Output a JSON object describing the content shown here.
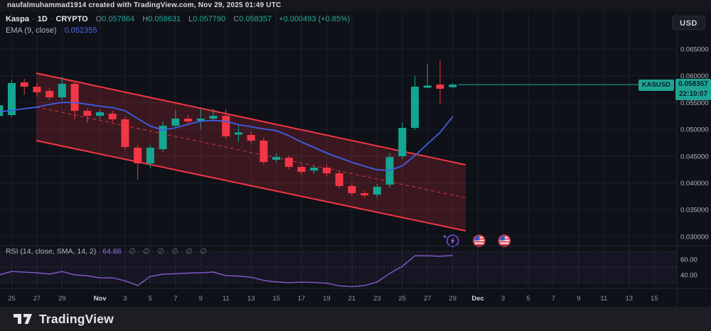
{
  "attribution": "naufalmuhammad1914 created with TradingView.com, Nov 29, 2025 01:49 UTC",
  "legend": {
    "symbol": "Kaspa",
    "separator": "·",
    "interval": "1D",
    "exchange": "CRYPTO",
    "o_label": "O",
    "o": "0.057864",
    "h_label": "H",
    "h": "0.058631",
    "l_label": "L",
    "l": "0.057790",
    "c_label": "C",
    "c": "0.058357",
    "change": "+0.000493 (+0.85%)",
    "ema_label": "EMA (9, close)",
    "ema_value": "0.052355"
  },
  "currency_button": "USD",
  "price_label": {
    "symbol": "KASUSD",
    "price": "0.058357",
    "countdown": "22:10:07"
  },
  "rsi_legend": {
    "label": "RSI (14, close, SMA, 14, 2)",
    "value": "64.88",
    "hidden_values": "∅ ∅ ∅ ∅ ∅ ∅"
  },
  "logo": {
    "text": "TradingView"
  },
  "colors": {
    "up": "#13a692",
    "down": "#f23645",
    "ema": "#3e5fe6",
    "rsi": "#7e57c2",
    "channel": "#f23645",
    "label_bg": "#21a392",
    "ema_value_blue": "#4e6ef2"
  },
  "chart_data": [
    {
      "type": "candlestick",
      "title": "Kaspa · 1D · CRYPTO",
      "first_index": -1,
      "y_axis": {
        "ticks": [
          0.065,
          0.06,
          0.055,
          0.05,
          0.045,
          0.04,
          0.035,
          0.03
        ],
        "range": [
          0.0287,
          0.0672
        ]
      },
      "x_axis": {
        "ticks": [
          {
            "i": 0,
            "label": "25"
          },
          {
            "i": 2,
            "label": "27"
          },
          {
            "i": 4,
            "label": "29"
          },
          {
            "i": 7,
            "label": "Nov",
            "major": true
          },
          {
            "i": 9,
            "label": "3"
          },
          {
            "i": 11,
            "label": "5"
          },
          {
            "i": 13,
            "label": "7"
          },
          {
            "i": 15,
            "label": "9"
          },
          {
            "i": 17,
            "label": "11"
          },
          {
            "i": 19,
            "label": "13"
          },
          {
            "i": 21,
            "label": "15"
          },
          {
            "i": 23,
            "label": "17"
          },
          {
            "i": 25,
            "label": "19"
          },
          {
            "i": 27,
            "label": "21"
          },
          {
            "i": 29,
            "label": "23"
          },
          {
            "i": 31,
            "label": "25"
          },
          {
            "i": 33,
            "label": "27"
          },
          {
            "i": 35,
            "label": "29"
          },
          {
            "i": 37,
            "label": "Dec",
            "major": true
          },
          {
            "i": 39,
            "label": "3"
          },
          {
            "i": 41,
            "label": "5"
          },
          {
            "i": 43,
            "label": "7"
          },
          {
            "i": 45,
            "label": "9"
          },
          {
            "i": 47,
            "label": "11"
          },
          {
            "i": 49,
            "label": "13"
          },
          {
            "i": 51,
            "label": "15"
          }
        ]
      },
      "candles": [
        {
          "d": "Oct 24",
          "o": 0.0525,
          "h": 0.0547,
          "l": 0.0522,
          "c": 0.0545
        },
        {
          "d": "Oct 25",
          "o": 0.05267,
          "h": 0.0593,
          "l": 0.05228,
          "c": 0.05864
        },
        {
          "d": "Oct 26",
          "o": 0.05877,
          "h": 0.05943,
          "l": 0.05651,
          "c": 0.05797
        },
        {
          "d": "Oct 27",
          "o": 0.05797,
          "h": 0.05864,
          "l": 0.05612,
          "c": 0.05691
        },
        {
          "d": "Oct 28",
          "o": 0.05718,
          "h": 0.05771,
          "l": 0.05545,
          "c": 0.05598
        },
        {
          "d": "Oct 29",
          "o": 0.05598,
          "h": 0.05983,
          "l": 0.05545,
          "c": 0.0585
        },
        {
          "d": "Oct 30",
          "o": 0.0585,
          "h": 0.05903,
          "l": 0.05187,
          "c": 0.05346
        },
        {
          "d": "Oct 31",
          "o": 0.05346,
          "h": 0.05399,
          "l": 0.05121,
          "c": 0.05253
        },
        {
          "d": "Nov 1",
          "o": 0.05253,
          "h": 0.05373,
          "l": 0.05187,
          "c": 0.0532
        },
        {
          "d": "Nov 2",
          "o": 0.05293,
          "h": 0.05346,
          "l": 0.05134,
          "c": 0.05187
        },
        {
          "d": "Nov 3",
          "o": 0.05187,
          "h": 0.0524,
          "l": 0.04617,
          "c": 0.0467
        },
        {
          "d": "Nov 4",
          "o": 0.04657,
          "h": 0.0471,
          "l": 0.0406,
          "c": 0.04365
        },
        {
          "d": "Nov 5",
          "o": 0.04365,
          "h": 0.0471,
          "l": 0.04272,
          "c": 0.04657
        },
        {
          "d": "Nov 6",
          "o": 0.0463,
          "h": 0.05147,
          "l": 0.04577,
          "c": 0.05068
        },
        {
          "d": "Nov 7",
          "o": 0.05068,
          "h": 0.0536,
          "l": 0.05015,
          "c": 0.052
        },
        {
          "d": "Nov 8",
          "o": 0.052,
          "h": 0.05267,
          "l": 0.05081,
          "c": 0.05147
        },
        {
          "d": "Nov 9",
          "o": 0.0516,
          "h": 0.05386,
          "l": 0.05002,
          "c": 0.052
        },
        {
          "d": "Nov 10",
          "o": 0.052,
          "h": 0.05386,
          "l": 0.05147,
          "c": 0.05253
        },
        {
          "d": "Nov 11",
          "o": 0.05253,
          "h": 0.05373,
          "l": 0.04829,
          "c": 0.04869
        },
        {
          "d": "Nov 12",
          "o": 0.04909,
          "h": 0.05068,
          "l": 0.04763,
          "c": 0.04935
        },
        {
          "d": "Nov 13",
          "o": 0.04896,
          "h": 0.04962,
          "l": 0.04736,
          "c": 0.04789
        },
        {
          "d": "Nov 14",
          "o": 0.04789,
          "h": 0.04842,
          "l": 0.04338,
          "c": 0.04391
        },
        {
          "d": "Nov 15",
          "o": 0.04432,
          "h": 0.04551,
          "l": 0.04378,
          "c": 0.04484
        },
        {
          "d": "Nov 16",
          "o": 0.04471,
          "h": 0.04511,
          "l": 0.04259,
          "c": 0.04299
        },
        {
          "d": "Nov 17",
          "o": 0.04299,
          "h": 0.04338,
          "l": 0.04153,
          "c": 0.04206
        },
        {
          "d": "Nov 18",
          "o": 0.04232,
          "h": 0.04325,
          "l": 0.04166,
          "c": 0.04285
        },
        {
          "d": "Nov 19",
          "o": 0.04285,
          "h": 0.04338,
          "l": 0.04126,
          "c": 0.04179
        },
        {
          "d": "Nov 20",
          "o": 0.04179,
          "h": 0.04232,
          "l": 0.03901,
          "c": 0.03941
        },
        {
          "d": "Nov 21",
          "o": 0.03941,
          "h": 0.03994,
          "l": 0.03755,
          "c": 0.03808
        },
        {
          "d": "Nov 22",
          "o": 0.03808,
          "h": 0.03861,
          "l": 0.03715,
          "c": 0.03768
        },
        {
          "d": "Nov 23",
          "o": 0.03781,
          "h": 0.0398,
          "l": 0.03728,
          "c": 0.03927
        },
        {
          "d": "Nov 24",
          "o": 0.03967,
          "h": 0.04564,
          "l": 0.03914,
          "c": 0.04484
        },
        {
          "d": "Nov 25",
          "o": 0.04498,
          "h": 0.05134,
          "l": 0.04445,
          "c": 0.05028
        },
        {
          "d": "Nov 26",
          "o": 0.05028,
          "h": 0.05996,
          "l": 0.04988,
          "c": 0.05797
        },
        {
          "d": "Nov 27",
          "o": 0.05784,
          "h": 0.06222,
          "l": 0.05771,
          "c": 0.05811
        },
        {
          "d": "Nov 28",
          "o": 0.05837,
          "h": 0.06288,
          "l": 0.05466,
          "c": 0.05758
        },
        {
          "d": "Nov 29",
          "o": 0.057864,
          "h": 0.058631,
          "l": 0.05779,
          "c": 0.058357
        }
      ],
      "overlays": {
        "ema": {
          "period": 9,
          "source": "close",
          "values": [
            0.05327,
            0.05353,
            0.05386,
            0.05415,
            0.05466,
            0.05503,
            0.05499,
            0.05468,
            0.05432,
            0.05406,
            0.05346,
            0.052,
            0.05061,
            0.04988,
            0.05028,
            0.05094,
            0.05154,
            0.05167,
            0.0515,
            0.05087,
            0.05048,
            0.05008,
            0.04975,
            0.04882,
            0.04763,
            0.04663,
            0.04557,
            0.04471,
            0.04385,
            0.04312,
            0.04246,
            0.04232,
            0.04319,
            0.04511,
            0.0473,
            0.04942,
            0.052355
          ]
        },
        "channel": {
          "upper": {
            "i1": 1.95,
            "p1": 0.06049,
            "i2": 36.03,
            "p2": 0.04338
          },
          "lower": {
            "i1": 1.95,
            "p1": 0.04789,
            "i2": 36.03,
            "p2": 0.03105
          }
        },
        "last_price": 0.058357,
        "markers": [
          {
            "type": "flash",
            "i": 35.0
          },
          {
            "type": "us-flag",
            "i": 37.1
          },
          {
            "type": "us-flag",
            "i": 39.1
          }
        ]
      }
    },
    {
      "type": "line",
      "name": "RSI (14, close, SMA, 14, 2)",
      "last": 64.88,
      "levels": [
        70,
        50,
        30
      ],
      "band": [
        30,
        70
      ],
      "y_ticks": [
        60,
        40
      ],
      "values": [
        40,
        44.5,
        43.5,
        42.7,
        41,
        44.3,
        40,
        38.8,
        36.3,
        36.2,
        32.5,
        26.4,
        38,
        40.9,
        41.5,
        42.3,
        42.7,
        43.6,
        39.1,
        38.5,
        37,
        33,
        31,
        30,
        30.8,
        30.2,
        29.3,
        26,
        25,
        26.4,
        30.9,
        41.8,
        50.9,
        64.5,
        64.5,
        63.8,
        64.88
      ]
    }
  ]
}
